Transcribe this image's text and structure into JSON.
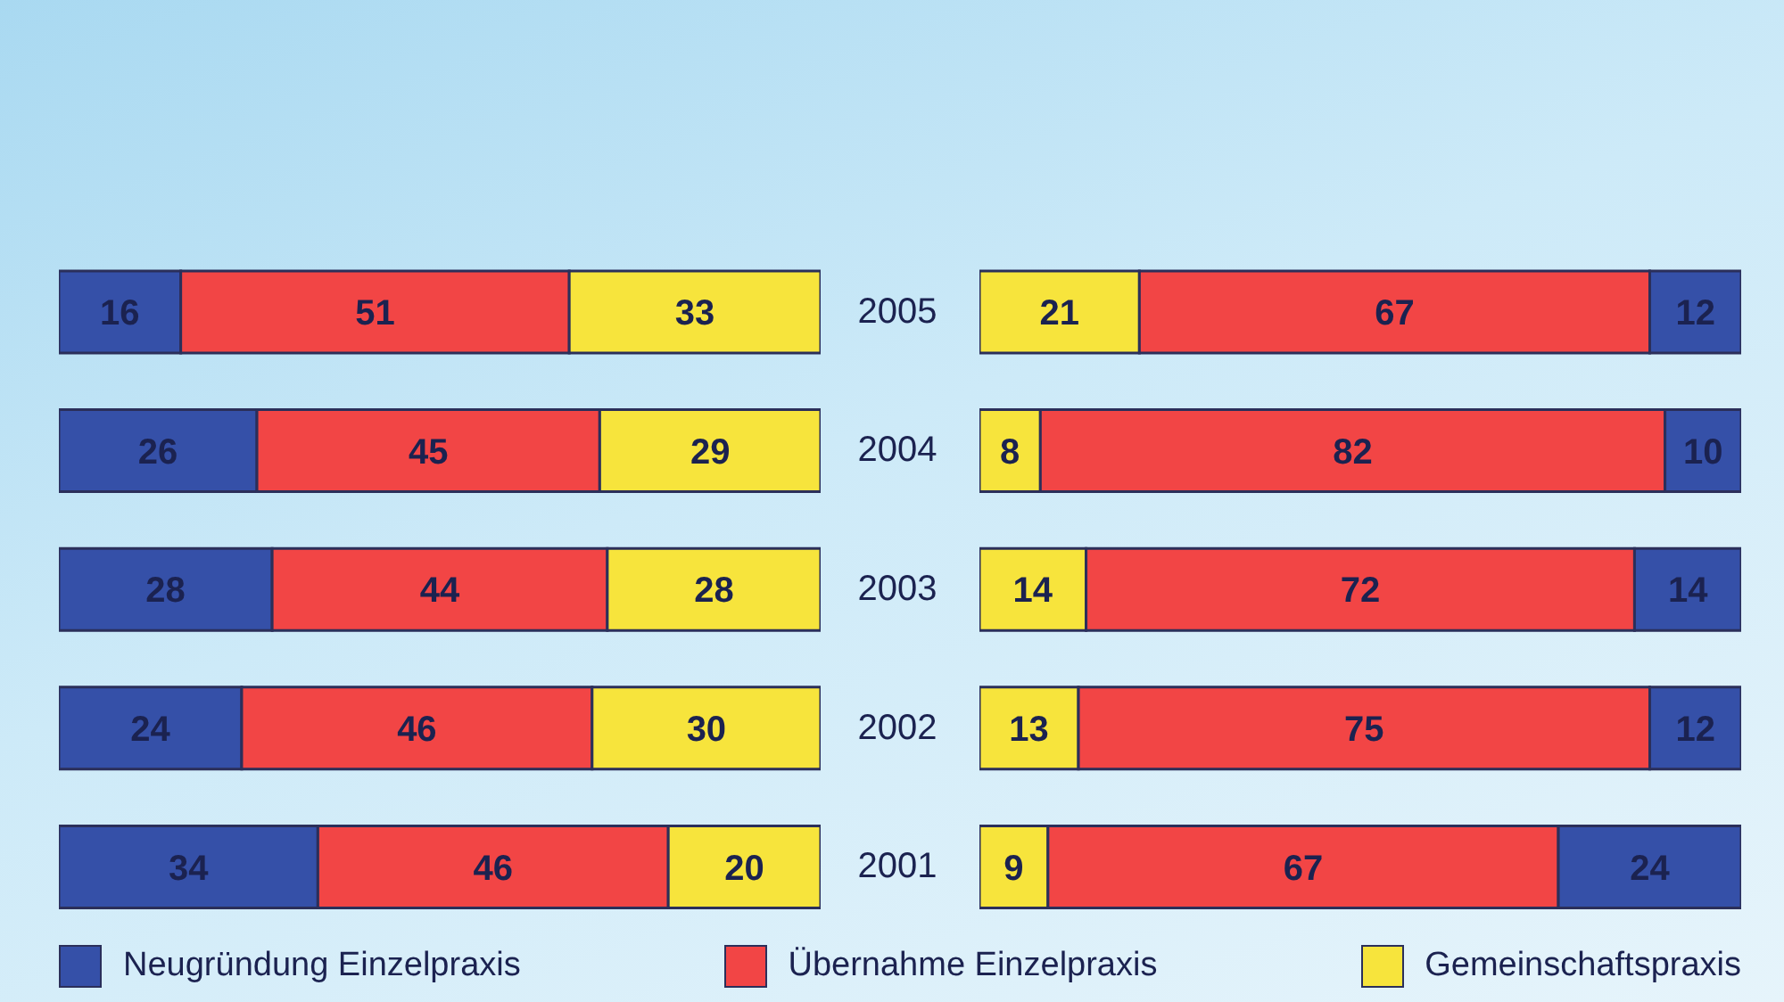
{
  "chart_data": [
    {
      "type": "bar",
      "orientation": "horizontal",
      "stacked": true,
      "categories": [
        "2005",
        "2004",
        "2003",
        "2002",
        "2001"
      ],
      "series": [
        {
          "name": "Neugründung Einzelpraxis",
          "color": "#3550a8",
          "values": [
            16,
            26,
            28,
            24,
            34
          ]
        },
        {
          "name": "Übernahme Einzelpraxis",
          "color": "#f24545",
          "values": [
            51,
            45,
            44,
            46,
            46
          ]
        },
        {
          "name": "Gemeinschaftspraxis",
          "color": "#f7e43c",
          "values": [
            33,
            29,
            28,
            30,
            20
          ]
        }
      ],
      "data_labels": true,
      "legend": "bottom",
      "tick_labels": "y"
    },
    {
      "type": "bar",
      "orientation": "horizontal",
      "stacked": true,
      "categories": [
        "2005",
        "2004",
        "2003",
        "2002",
        "2001"
      ],
      "series": [
        {
          "color": "#f7e43c",
          "values": [
            21,
            8,
            14,
            13,
            9
          ]
        },
        {
          "color": "#f24545",
          "values": [
            67,
            82,
            72,
            75,
            67
          ]
        },
        {
          "color": "#3550a8",
          "values": [
            12,
            10,
            14,
            12,
            24
          ]
        }
      ],
      "data_labels": true,
      "tick_labels": false
    }
  ]
}
